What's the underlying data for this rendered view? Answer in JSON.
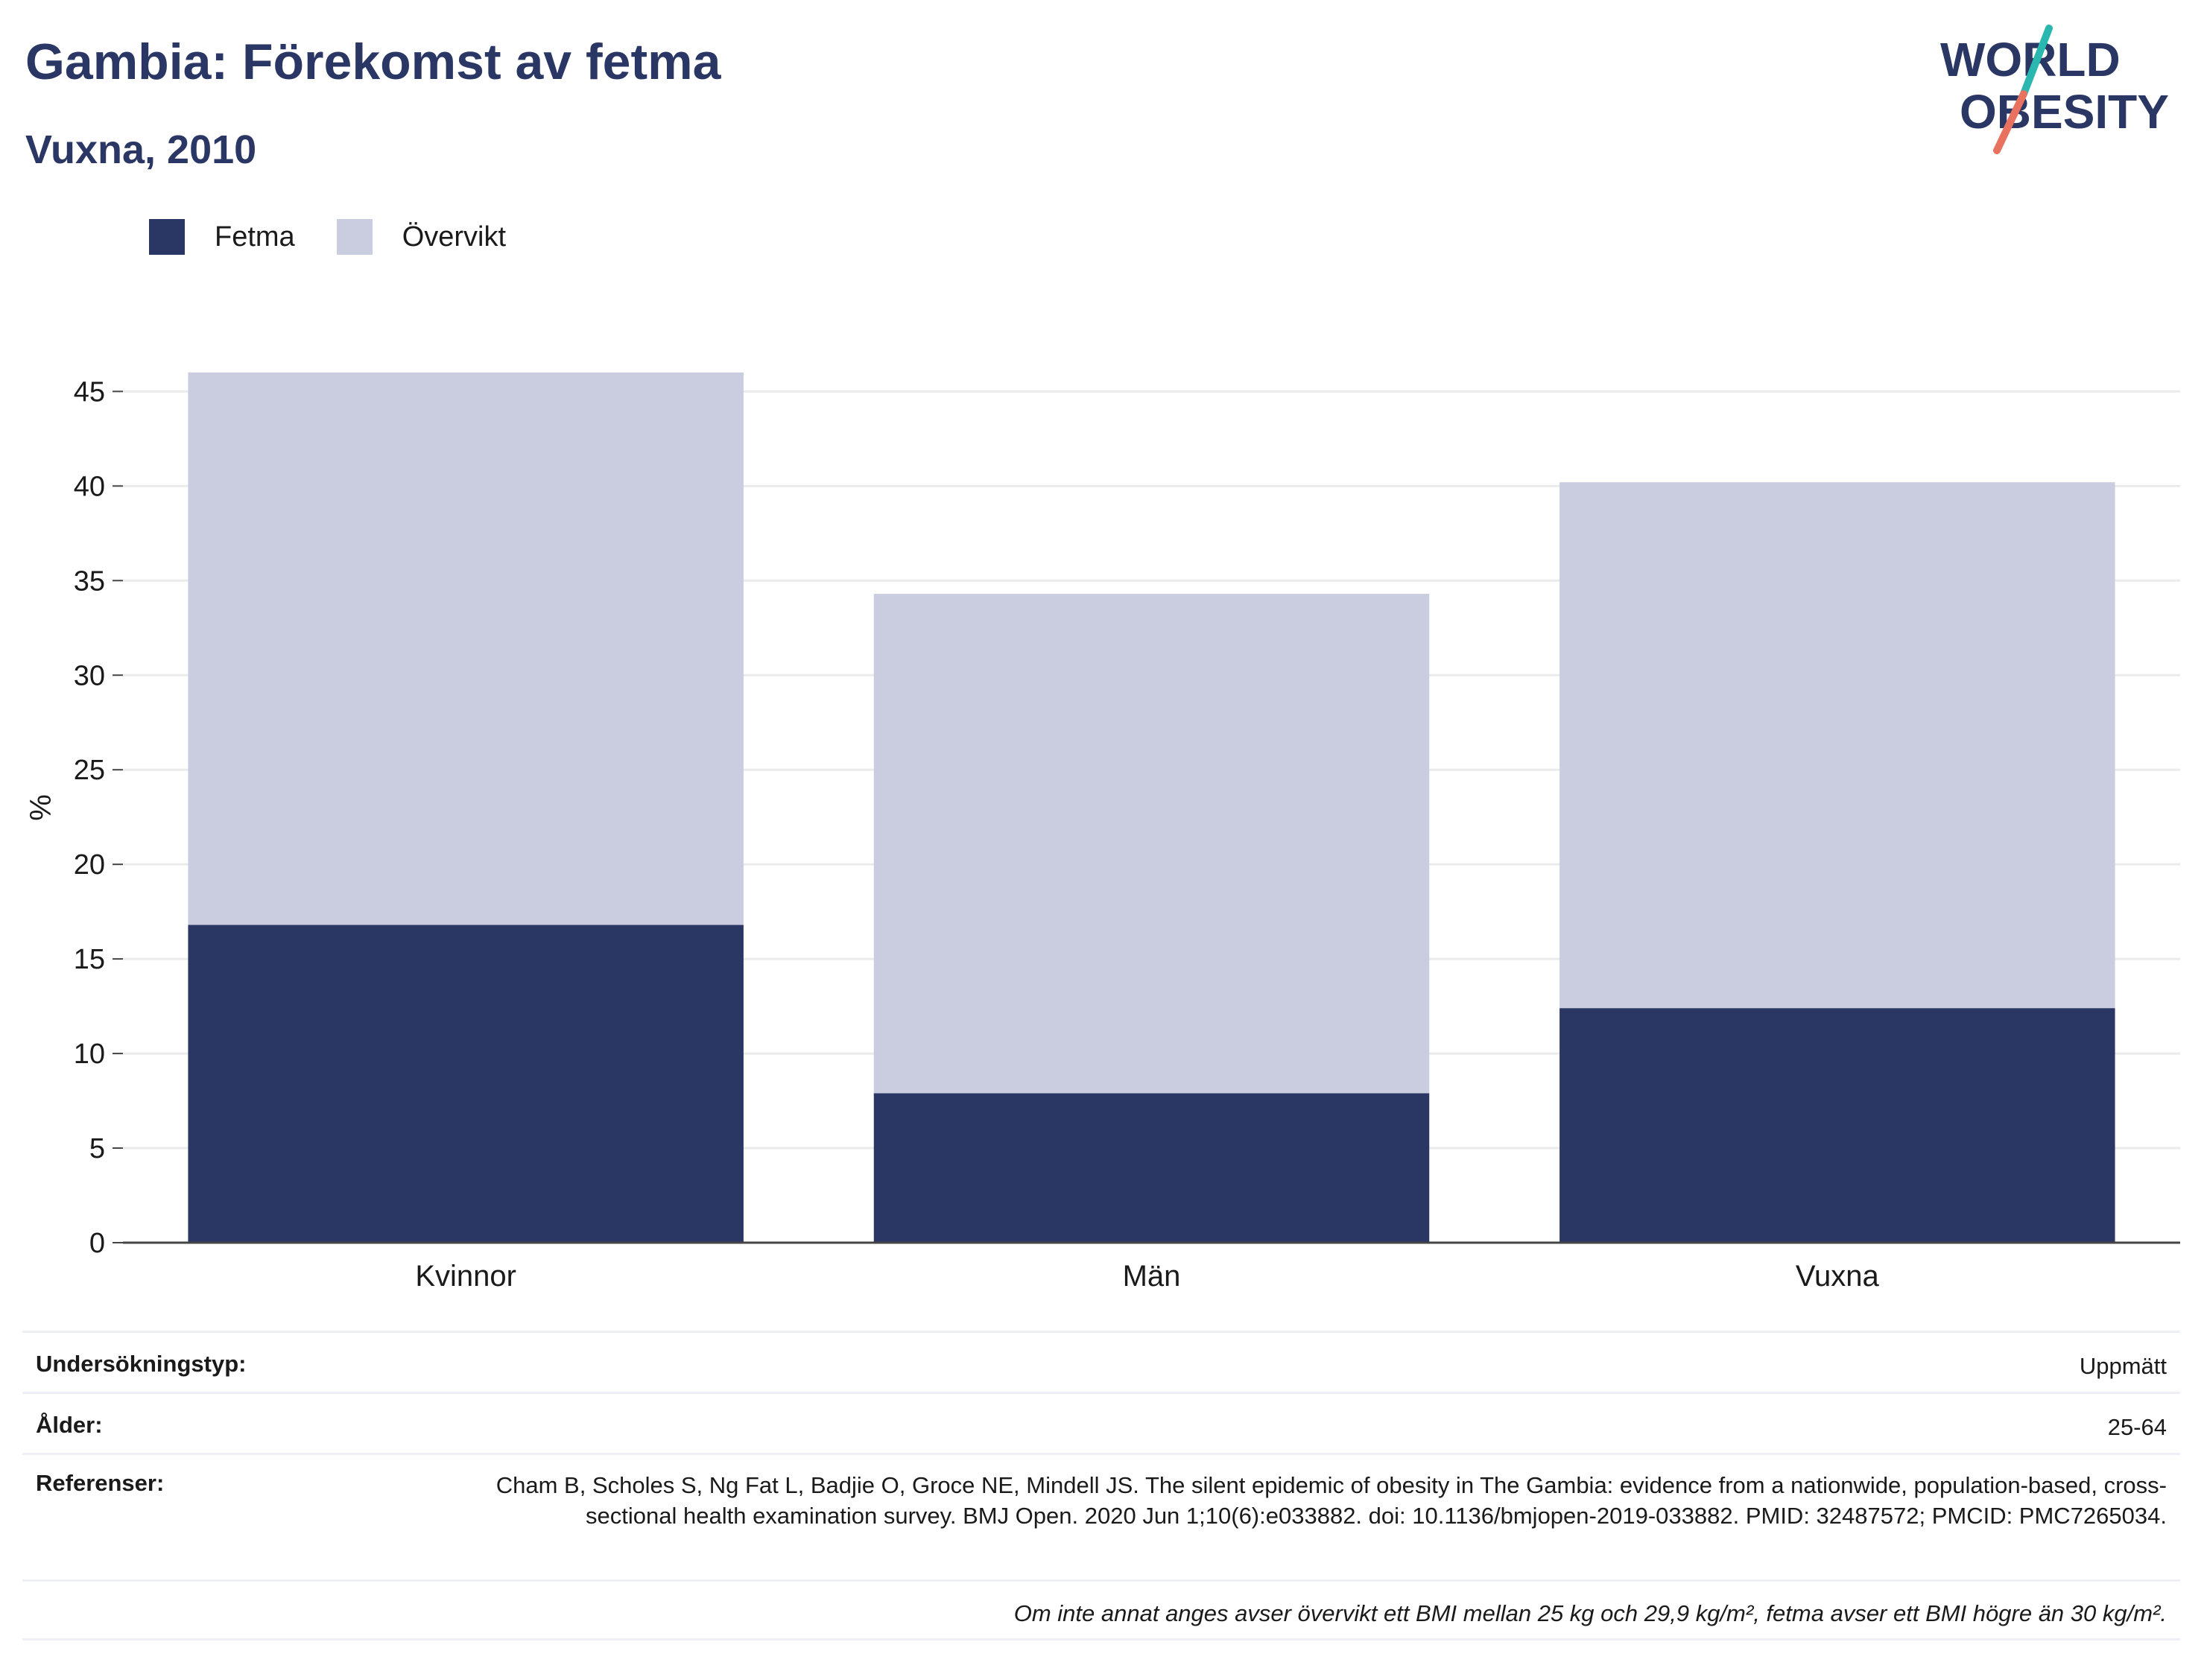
{
  "header": {
    "title": "Gambia: Förekomst av fetma",
    "subtitle": "Vuxna, 2010"
  },
  "logo": {
    "line1": "WORLD",
    "line2": "OBESITY",
    "icon": "world-obesity-logo",
    "colors": {
      "text": "#2a3663",
      "slash_top": "#2ab7b0",
      "slash_bottom": "#e8725f"
    }
  },
  "colors": {
    "fetma": "#2a3663",
    "overvikt": "#cacce0",
    "grid": "#ebebeb",
    "axis": "#444444"
  },
  "chart_data": {
    "type": "bar",
    "stacked": true,
    "categories": [
      "Kvinnor",
      "Män",
      "Vuxna"
    ],
    "series": [
      {
        "name": "Fetma",
        "values": [
          16.8,
          7.9,
          12.4
        ],
        "color": "#2a3663"
      },
      {
        "name": "Övervikt",
        "values": [
          29.2,
          26.4,
          27.8
        ],
        "color": "#cacce0"
      }
    ],
    "ylabel": "%",
    "ylim": [
      0,
      46
    ],
    "yticks": [
      0,
      5,
      10,
      15,
      20,
      25,
      30,
      35,
      40,
      45
    ],
    "grid": true,
    "legend_position": "top-left"
  },
  "meta": {
    "survey_type_label": "Undersökningstyp:",
    "survey_type_value": "Uppmätt",
    "age_label": "Ålder:",
    "age_value": "25-64",
    "references_label": "Referenser:",
    "references_value": "Cham B, Scholes S, Ng Fat L, Badjie O, Groce NE, Mindell JS. The silent epidemic of obesity in The Gambia: evidence from a nationwide, population-based, cross-sectional health examination survey. BMJ Open. 2020 Jun 1;10(6):e033882. doi: 10.1136/bmjopen-2019-033882. PMID: 32487572; PMCID: PMC7265034.",
    "note": "Om inte annat anges avser övervikt ett BMI mellan 25 kg och 29,9 kg/m², fetma avser ett BMI högre än 30 kg/m²."
  }
}
